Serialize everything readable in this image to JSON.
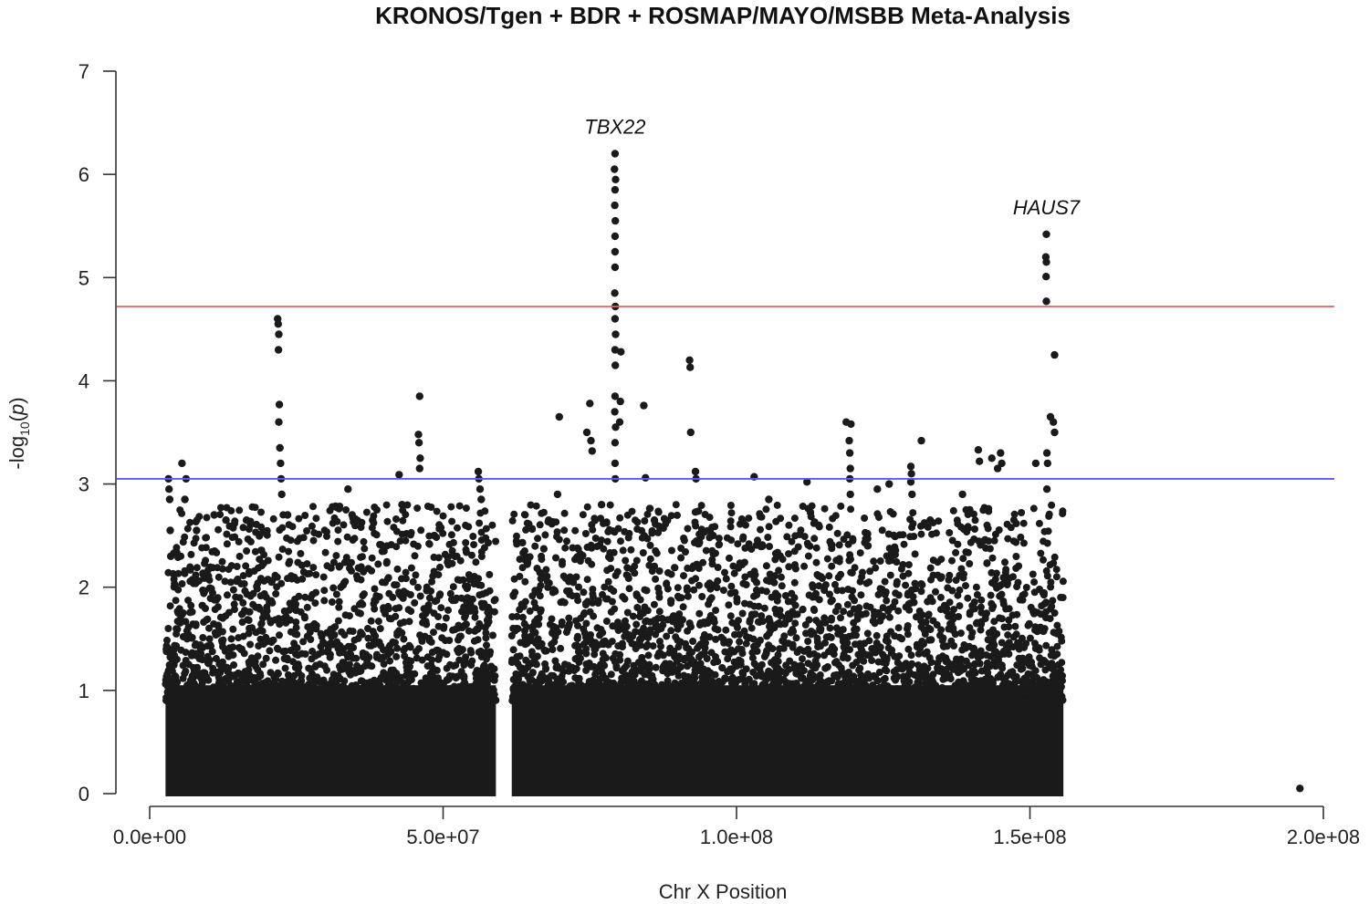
{
  "chart_data": {
    "type": "scatter",
    "title": "KRONOS/Tgen + BDR + ROSMAP/MAYO/MSBB Meta-Analysis",
    "xlabel": "Chr X Position",
    "ylabel_main": "-log",
    "ylabel_sub": "10",
    "ylabel_var": "p",
    "xlim": [
      -5000000,
      200000000
    ],
    "ylim": [
      0,
      7
    ],
    "x_ticks": [
      0,
      50000000,
      100000000,
      150000000,
      200000000
    ],
    "x_tick_labels": [
      "0.0e+00",
      "5.0e+07",
      "1.0e+08",
      "1.5e+08",
      "2.0e+08"
    ],
    "y_ticks": [
      0,
      1,
      2,
      3,
      4,
      5,
      6,
      7
    ],
    "y_tick_labels": [
      "0",
      "1",
      "2",
      "3",
      "4",
      "5",
      "6",
      "7"
    ],
    "thresholds": [
      {
        "name": "genome-wide-significance",
        "value": 4.72,
        "color": "#e8616a"
      },
      {
        "name": "suggestive",
        "value": 3.05,
        "color": "#5b5bf0"
      }
    ],
    "point_color": "#1a1a1a",
    "data_regions": [
      {
        "start": 2700000,
        "end": 59000000
      },
      {
        "start": 61700000,
        "end": 155700000
      }
    ],
    "annotations": [
      {
        "label": "TBX22",
        "x": 79300000,
        "y": 6.2
      },
      {
        "label": "HAUS7",
        "x": 152800000,
        "y": 5.42
      }
    ],
    "points": [
      {
        "x": 3200000,
        "y": 3.05
      },
      {
        "x": 3300000,
        "y": 2.95
      },
      {
        "x": 3400000,
        "y": 2.85
      },
      {
        "x": 3500000,
        "y": 2.55
      },
      {
        "x": 3600000,
        "y": 2.3
      },
      {
        "x": 5500000,
        "y": 3.2
      },
      {
        "x": 6000000,
        "y": 2.85
      },
      {
        "x": 6200000,
        "y": 3.05
      },
      {
        "x": 8000000,
        "y": 2.55
      },
      {
        "x": 11000000,
        "y": 2.7
      },
      {
        "x": 13000000,
        "y": 2.65
      },
      {
        "x": 16500000,
        "y": 2.65
      },
      {
        "x": 21800000,
        "y": 4.6
      },
      {
        "x": 21900000,
        "y": 4.55
      },
      {
        "x": 22000000,
        "y": 4.45
      },
      {
        "x": 21950000,
        "y": 4.3
      },
      {
        "x": 22100000,
        "y": 3.77
      },
      {
        "x": 22000000,
        "y": 3.6
      },
      {
        "x": 22200000,
        "y": 3.35
      },
      {
        "x": 22300000,
        "y": 3.2
      },
      {
        "x": 22400000,
        "y": 3.05
      },
      {
        "x": 22500000,
        "y": 2.9
      },
      {
        "x": 23500000,
        "y": 2.7
      },
      {
        "x": 33800000,
        "y": 2.95
      },
      {
        "x": 34500000,
        "y": 2.7
      },
      {
        "x": 38000000,
        "y": 2.65
      },
      {
        "x": 42500000,
        "y": 3.09
      },
      {
        "x": 43000000,
        "y": 2.8
      },
      {
        "x": 46000000,
        "y": 3.85
      },
      {
        "x": 45800000,
        "y": 3.48
      },
      {
        "x": 45900000,
        "y": 3.4
      },
      {
        "x": 46100000,
        "y": 3.25
      },
      {
        "x": 46000000,
        "y": 3.15
      },
      {
        "x": 48500000,
        "y": 2.5
      },
      {
        "x": 56000000,
        "y": 3.12
      },
      {
        "x": 56100000,
        "y": 3.05
      },
      {
        "x": 56300000,
        "y": 2.95
      },
      {
        "x": 56500000,
        "y": 2.85
      },
      {
        "x": 64000000,
        "y": 2.27
      },
      {
        "x": 68000000,
        "y": 2.65
      },
      {
        "x": 69500000,
        "y": 2.9
      },
      {
        "x": 69800000,
        "y": 3.65
      },
      {
        "x": 74500000,
        "y": 3.5
      },
      {
        "x": 75000000,
        "y": 3.78
      },
      {
        "x": 75200000,
        "y": 3.42
      },
      {
        "x": 75400000,
        "y": 3.32
      },
      {
        "x": 77000000,
        "y": 2.8
      },
      {
        "x": 79300000,
        "y": 6.2
      },
      {
        "x": 79200000,
        "y": 6.05
      },
      {
        "x": 79400000,
        "y": 5.95
      },
      {
        "x": 79300000,
        "y": 5.85
      },
      {
        "x": 79250000,
        "y": 5.7
      },
      {
        "x": 79350000,
        "y": 5.55
      },
      {
        "x": 79300000,
        "y": 5.4
      },
      {
        "x": 79300000,
        "y": 5.25
      },
      {
        "x": 79300000,
        "y": 5.1
      },
      {
        "x": 79250000,
        "y": 4.85
      },
      {
        "x": 79350000,
        "y": 4.72
      },
      {
        "x": 79300000,
        "y": 4.6
      },
      {
        "x": 79400000,
        "y": 4.45
      },
      {
        "x": 79300000,
        "y": 4.3
      },
      {
        "x": 79350000,
        "y": 4.15
      },
      {
        "x": 79300000,
        "y": 3.85
      },
      {
        "x": 79250000,
        "y": 3.7
      },
      {
        "x": 79400000,
        "y": 3.55
      },
      {
        "x": 79300000,
        "y": 3.4
      },
      {
        "x": 79300000,
        "y": 3.2
      },
      {
        "x": 79350000,
        "y": 3.05
      },
      {
        "x": 80300000,
        "y": 4.28
      },
      {
        "x": 80200000,
        "y": 3.8
      },
      {
        "x": 80100000,
        "y": 3.6
      },
      {
        "x": 84200000,
        "y": 3.76
      },
      {
        "x": 84500000,
        "y": 3.06
      },
      {
        "x": 86000000,
        "y": 2.65
      },
      {
        "x": 92000000,
        "y": 4.2
      },
      {
        "x": 92100000,
        "y": 4.13
      },
      {
        "x": 92200000,
        "y": 3.5
      },
      {
        "x": 93000000,
        "y": 3.12
      },
      {
        "x": 93100000,
        "y": 3.05
      },
      {
        "x": 96000000,
        "y": 2.5
      },
      {
        "x": 103000000,
        "y": 3.07
      },
      {
        "x": 105500000,
        "y": 2.85
      },
      {
        "x": 112000000,
        "y": 3.02
      },
      {
        "x": 114000000,
        "y": 2.6
      },
      {
        "x": 118700000,
        "y": 3.6
      },
      {
        "x": 119500000,
        "y": 3.58
      },
      {
        "x": 119200000,
        "y": 3.42
      },
      {
        "x": 119300000,
        "y": 3.3
      },
      {
        "x": 119400000,
        "y": 3.15
      },
      {
        "x": 119300000,
        "y": 3.05
      },
      {
        "x": 119400000,
        "y": 2.9
      },
      {
        "x": 124000000,
        "y": 2.95
      },
      {
        "x": 126000000,
        "y": 3.0
      },
      {
        "x": 129700000,
        "y": 3.17
      },
      {
        "x": 129800000,
        "y": 3.1
      },
      {
        "x": 129700000,
        "y": 3.02
      },
      {
        "x": 129900000,
        "y": 2.9
      },
      {
        "x": 131500000,
        "y": 3.42
      },
      {
        "x": 133000000,
        "y": 2.65
      },
      {
        "x": 138500000,
        "y": 2.9
      },
      {
        "x": 141200000,
        "y": 3.33
      },
      {
        "x": 141400000,
        "y": 3.22
      },
      {
        "x": 143500000,
        "y": 3.25
      },
      {
        "x": 144500000,
        "y": 3.15
      },
      {
        "x": 145000000,
        "y": 3.3
      },
      {
        "x": 145200000,
        "y": 3.2
      },
      {
        "x": 151000000,
        "y": 3.2
      },
      {
        "x": 152800000,
        "y": 5.42
      },
      {
        "x": 152700000,
        "y": 5.2
      },
      {
        "x": 152800000,
        "y": 5.15
      },
      {
        "x": 152750000,
        "y": 5.01
      },
      {
        "x": 152800000,
        "y": 4.77
      },
      {
        "x": 154200000,
        "y": 4.25
      },
      {
        "x": 153500000,
        "y": 3.65
      },
      {
        "x": 154000000,
        "y": 3.6
      },
      {
        "x": 154200000,
        "y": 3.5
      },
      {
        "x": 152900000,
        "y": 3.3
      },
      {
        "x": 153000000,
        "y": 3.2
      },
      {
        "x": 152900000,
        "y": 2.95
      },
      {
        "x": 196000000,
        "y": 0.05
      }
    ]
  }
}
